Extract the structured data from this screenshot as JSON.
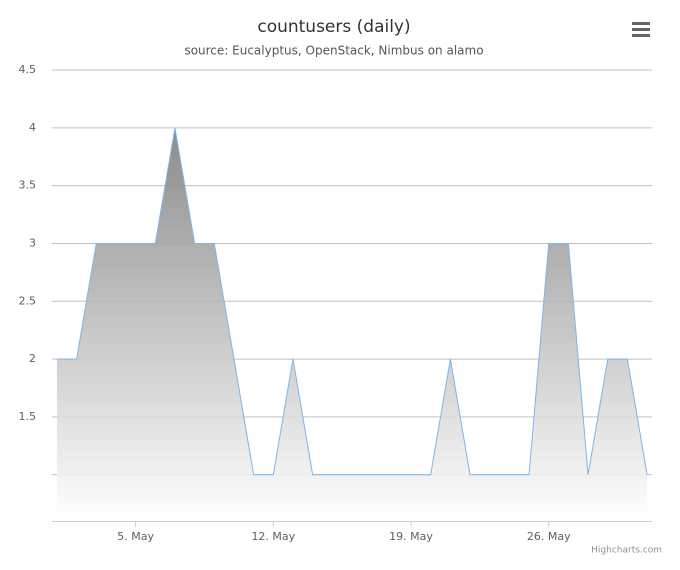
{
  "chart_data": {
    "type": "area",
    "title": "countusers (daily)",
    "subtitle": "source: Eucalyptus, OpenStack, Nimbus on alamo",
    "credits": "Highcharts.com",
    "x": [
      1,
      2,
      3,
      4,
      5,
      6,
      7,
      8,
      9,
      10,
      11,
      12,
      13,
      14,
      15,
      16,
      17,
      18,
      19,
      20,
      21,
      22,
      23,
      24,
      25,
      26,
      27,
      28,
      29,
      30,
      31
    ],
    "series": [
      {
        "color": "#7cb5ec",
        "values": [
          2,
          2,
          3,
          3,
          3,
          3,
          4,
          3,
          3,
          2,
          1,
          1,
          2,
          1,
          1,
          1,
          1,
          1,
          1,
          1,
          2,
          1,
          1,
          1,
          1,
          3,
          3,
          1,
          2,
          2,
          1
        ]
      }
    ],
    "xlim": [
      0.75,
      31.25
    ],
    "xticks": [
      {
        "value": 5,
        "label": "5. May"
      },
      {
        "value": 12,
        "label": "12. May"
      },
      {
        "value": 19,
        "label": "19. May"
      },
      {
        "value": 26,
        "label": "26. May"
      }
    ],
    "ylim": [
      0.6,
      4.5
    ],
    "yticks": [
      {
        "value": 1,
        "label": null
      },
      1.5,
      2,
      2.5,
      3,
      3.5,
      4,
      4.5
    ],
    "grid": true
  }
}
